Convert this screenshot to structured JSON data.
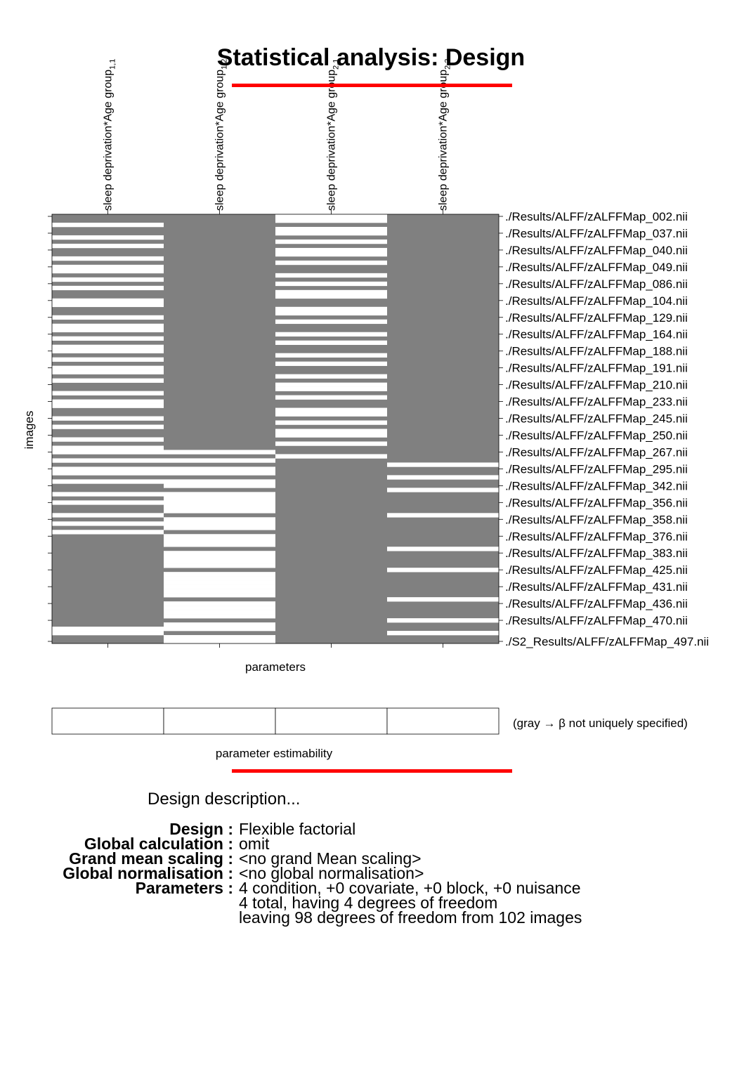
{
  "title": "Statistical analysis: Design",
  "colors": {
    "accent": "#ff0000",
    "design_gray": "#808080",
    "design_white": "#ffffff"
  },
  "chart_data": {
    "type": "heatmap",
    "title": "Statistical analysis: Design",
    "xlabel": "parameters",
    "ylabel": "images",
    "n_images": 102,
    "columns": [
      {
        "base": "sleep deprivation*Age group",
        "sub": "1,1"
      },
      {
        "base": "sleep deprivation*Age group",
        "sub": "1,2"
      },
      {
        "base": "sleep deprivation*Age group",
        "sub": "2,1"
      },
      {
        "base": "sleep deprivation*Age group",
        "sub": "2,2"
      }
    ],
    "column_rows": {
      "1,1": [
        2,
        5,
        7,
        10,
        12,
        13,
        15,
        17,
        20,
        21,
        24,
        26,
        27,
        29,
        31,
        32,
        34,
        36,
        37,
        39,
        42,
        44,
        45,
        48,
        50,
        53,
        55,
        56,
        58,
        60,
        61,
        63,
        66,
        68,
        71,
        73,
        75,
        98,
        99
      ],
      "1,2": [
        56,
        58,
        60,
        61,
        63,
        64,
        66,
        67,
        68,
        69,
        70,
        72,
        73,
        74,
        76,
        77,
        78,
        80,
        81,
        82,
        83,
        85,
        86,
        87,
        88,
        89,
        90,
        92,
        93,
        94,
        95,
        97,
        98,
        100,
        101
      ],
      "2,1": [
        0,
        1,
        3,
        4,
        6,
        8,
        9,
        11,
        14,
        16,
        18,
        19,
        22,
        23,
        25,
        28,
        30,
        33,
        35,
        38,
        40,
        41,
        43,
        46,
        47,
        49,
        51,
        52,
        54,
        57
      ],
      "2,2": [
        59,
        62,
        65,
        71,
        79,
        84,
        91,
        96,
        99
      ]
    },
    "white_value": 1,
    "gray_value": 0,
    "row_labels": [
      {
        "index": 0,
        "label": "./Results/ALFF/zALFFMap_002.nii"
      },
      {
        "index": 4,
        "label": "./Results/ALFF/zALFFMap_037.nii"
      },
      {
        "index": 8,
        "label": "./Results/ALFF/zALFFMap_040.nii"
      },
      {
        "index": 12,
        "label": "./Results/ALFF/zALFFMap_049.nii"
      },
      {
        "index": 16,
        "label": "./Results/ALFF/zALFFMap_086.nii"
      },
      {
        "index": 20,
        "label": "./Results/ALFF/zALFFMap_104.nii"
      },
      {
        "index": 24,
        "label": "./Results/ALFF/zALFFMap_129.nii"
      },
      {
        "index": 28,
        "label": "./Results/ALFF/zALFFMap_164.nii"
      },
      {
        "index": 32,
        "label": "./Results/ALFF/zALFFMap_188.nii"
      },
      {
        "index": 36,
        "label": "./Results/ALFF/zALFFMap_191.nii"
      },
      {
        "index": 40,
        "label": "./Results/ALFF/zALFFMap_210.nii"
      },
      {
        "index": 44,
        "label": "./Results/ALFF/zALFFMap_233.nii"
      },
      {
        "index": 48,
        "label": "./Results/ALFF/zALFFMap_245.nii"
      },
      {
        "index": 52,
        "label": "./Results/ALFF/zALFFMap_250.nii"
      },
      {
        "index": 56,
        "label": "./Results/ALFF/zALFFMap_267.nii"
      },
      {
        "index": 60,
        "label": "./Results/ALFF/zALFFMap_295.nii"
      },
      {
        "index": 64,
        "label": "./Results/ALFF/zALFFMap_342.nii"
      },
      {
        "index": 68,
        "label": "./Results/ALFF/zALFFMap_356.nii"
      },
      {
        "index": 72,
        "label": "./Results/ALFF/zALFFMap_358.nii"
      },
      {
        "index": 76,
        "label": "./Results/ALFF/zALFFMap_376.nii"
      },
      {
        "index": 80,
        "label": "./Results/ALFF/zALFFMap_383.nii"
      },
      {
        "index": 84,
        "label": "./Results/ALFF/zALFFMap_425.nii"
      },
      {
        "index": 88,
        "label": "./Results/ALFF/zALFFMap_431.nii"
      },
      {
        "index": 92,
        "label": "./Results/ALFF/zALFFMap_436.nii"
      },
      {
        "index": 96,
        "label": "./Results/ALFF/zALFFMap_470.nii"
      },
      {
        "index": 101,
        "label": "./S2_Results/ALFF/zALFFMap_497.nii"
      }
    ],
    "estimability": {
      "label": "parameter estimability",
      "note": "(gray → β not uniquely specified)",
      "values": [
        1,
        1,
        1,
        1
      ]
    }
  },
  "description": {
    "heading": "Design description...",
    "rows": [
      {
        "key": "Design :",
        "value": "Flexible factorial"
      },
      {
        "key": "Global calculation :",
        "value": "omit"
      },
      {
        "key": "Grand mean scaling :",
        "value": "<no grand Mean scaling>"
      },
      {
        "key": "Global normalisation :",
        "value": "<no global normalisation>"
      },
      {
        "key": "Parameters :",
        "value": "4 condition, +0 covariate, +0 block, +0 nuisance"
      },
      {
        "key": "",
        "value": "4 total, having 4 degrees of freedom"
      },
      {
        "key": "",
        "value": "leaving 98 degrees of freedom from 102 images"
      }
    ]
  }
}
